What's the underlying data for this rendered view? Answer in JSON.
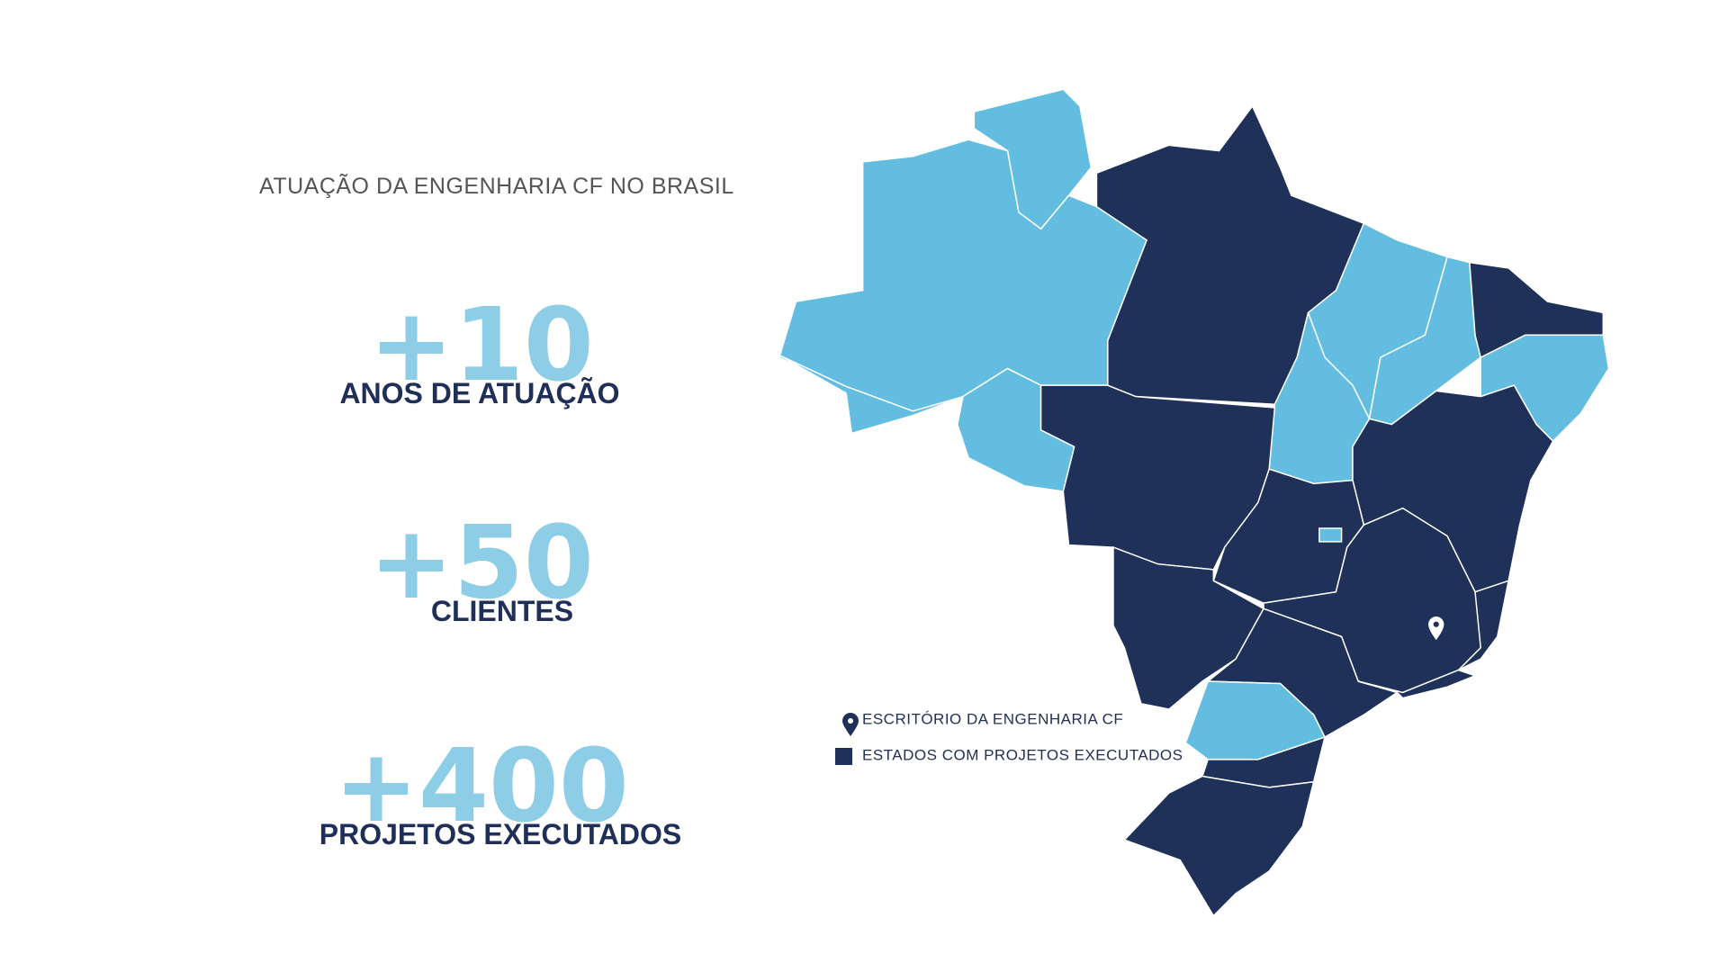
{
  "header": {
    "title": "ATUAÇÃO DA ENGENHARIA CF NO BRASIL"
  },
  "stats": [
    {
      "number": "+10",
      "label": "ANOS DE ATUAÇÃO"
    },
    {
      "number": "+50",
      "label": "CLIENTES"
    },
    {
      "number": "+400",
      "label": "PROJETOS EXECUTADOS"
    }
  ],
  "legend": [
    {
      "label": "ESCRITÓRIO DA ENGENHARIA CF"
    },
    {
      "label": "ESTADOS COM PROJETOS EXECUTADOS"
    }
  ]
}
